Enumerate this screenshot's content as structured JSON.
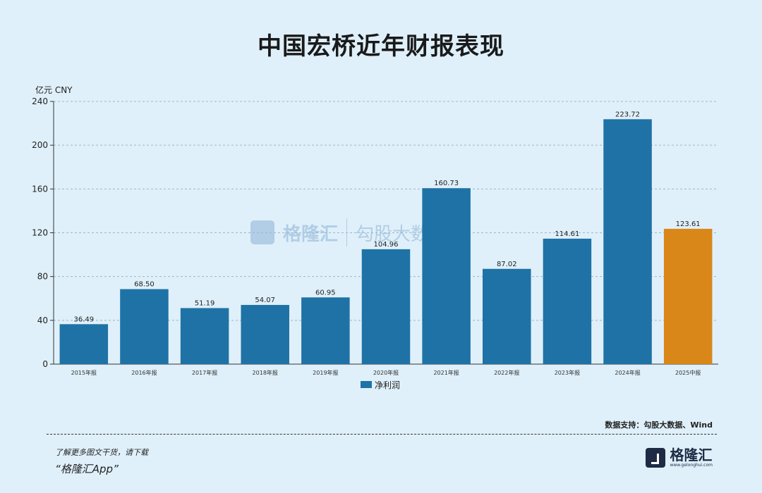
{
  "title": "中国宏桥近年财报表现",
  "unit_label": "亿元  CNY",
  "source": "数据支持：勾股大数据、Wind",
  "download_text": "了解更多图文干货，请下载",
  "app_name": "“格隆汇App”",
  "logo": {
    "name": "格隆汇",
    "url": "www.gelonghui.com"
  },
  "watermark": {
    "left": "格隆汇",
    "right": "勾股大数据"
  },
  "colors": {
    "bar": "#1f72a5",
    "highlight": "#d98718",
    "background": "#dff0fa"
  },
  "chart_data": {
    "type": "bar",
    "title": "中国宏桥近年财报表现",
    "ylabel": "亿元  CNY",
    "ylim": [
      0,
      240
    ],
    "yticks": [
      0,
      40,
      80,
      120,
      160,
      200,
      240
    ],
    "grid": true,
    "legend_position": "bottom",
    "categories": [
      "2015年报",
      "2016年报",
      "2017年报",
      "2018年报",
      "2019年报",
      "2020年报",
      "2021年报",
      "2022年报",
      "2023年报",
      "2024年报",
      "2025中报"
    ],
    "series": [
      {
        "name": "净利润",
        "values": [
          36.49,
          68.5,
          51.19,
          54.07,
          60.95,
          104.96,
          160.73,
          87.02,
          114.61,
          223.72,
          123.61
        ],
        "labels": [
          "36.49",
          "68.50",
          "51.19",
          "54.07",
          "60.95",
          "104.96",
          "160.73",
          "87.02",
          "114.61",
          "223.72",
          "123.61"
        ]
      }
    ],
    "highlight_index": 10
  }
}
